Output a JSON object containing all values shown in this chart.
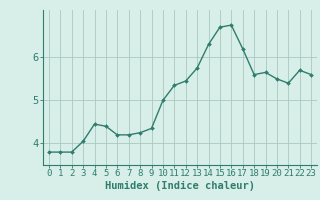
{
  "x": [
    0,
    1,
    2,
    3,
    4,
    5,
    6,
    7,
    8,
    9,
    10,
    11,
    12,
    13,
    14,
    15,
    16,
    17,
    18,
    19,
    20,
    21,
    22,
    23
  ],
  "y": [
    3.8,
    3.8,
    3.8,
    4.05,
    4.45,
    4.4,
    4.2,
    4.2,
    4.25,
    4.35,
    5.0,
    5.35,
    5.45,
    5.75,
    6.3,
    6.7,
    6.75,
    6.2,
    5.6,
    5.65,
    5.5,
    5.4,
    5.7,
    5.6
  ],
  "line_color": "#2e7d6e",
  "marker": "D",
  "marker_size": 2.0,
  "line_width": 1.0,
  "xlabel": "Humidex (Indice chaleur)",
  "xlim": [
    -0.5,
    23.5
  ],
  "ylim": [
    3.5,
    7.1
  ],
  "yticks": [
    4,
    5,
    6
  ],
  "xticks": [
    0,
    1,
    2,
    3,
    4,
    5,
    6,
    7,
    8,
    9,
    10,
    11,
    12,
    13,
    14,
    15,
    16,
    17,
    18,
    19,
    20,
    21,
    22,
    23
  ],
  "grid_color": "#aac8c0",
  "bg_color": "#d8eee8",
  "axis_color": "#2e7d6e",
  "tick_color": "#2e7d6e",
  "xlabel_fontsize": 7.5,
  "tick_fontsize": 6.5
}
